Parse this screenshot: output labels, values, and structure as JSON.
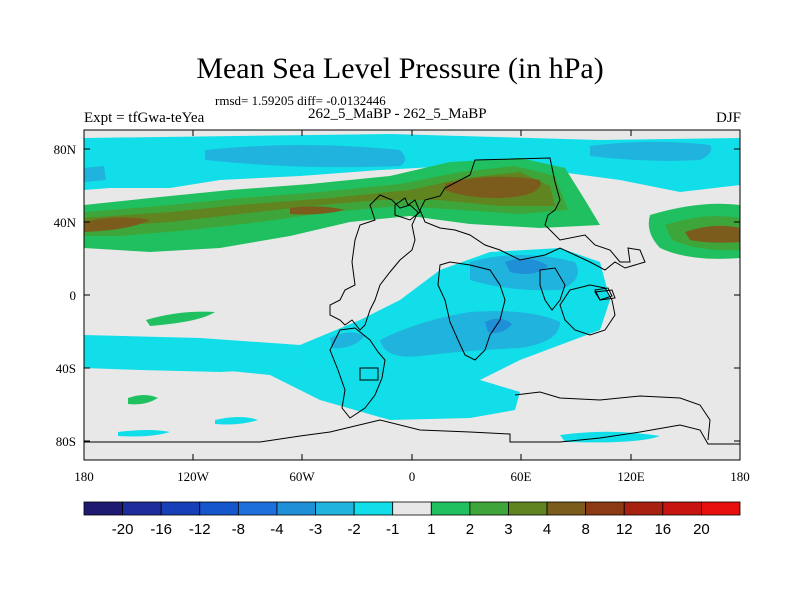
{
  "title": "Mean Sea Level Pressure (in hPa)",
  "stats": "rmsd= 1.59205 diff= -0.0132446",
  "experiment": "Expt = tfGwa-teYea",
  "comparison": "262_5_MaBP - 262_5_MaBP",
  "season": "DJF",
  "map": {
    "lon_ticks": [
      "180",
      "120W",
      "60W",
      "0",
      "60E",
      "120E",
      "180"
    ],
    "lat_ticks": [
      "80N",
      "40N",
      "0",
      "40S",
      "80S"
    ]
  },
  "colorbar": {
    "labels": [
      "-20",
      "-16",
      "-12",
      "-8",
      "-4",
      "-3",
      "-2",
      "-1",
      "1",
      "2",
      "3",
      "4",
      "8",
      "12",
      "16",
      "20"
    ],
    "colors": [
      "#1e1a72",
      "#1f2d9c",
      "#1740b8",
      "#1656cc",
      "#1d70dc",
      "#1f8fd8",
      "#20b3de",
      "#11dee8",
      "#e8e8e8",
      "#20c060",
      "#3ea53a",
      "#5f8420",
      "#7b5c1c",
      "#8c3a14",
      "#a82010",
      "#c81410",
      "#e8100c"
    ]
  }
}
